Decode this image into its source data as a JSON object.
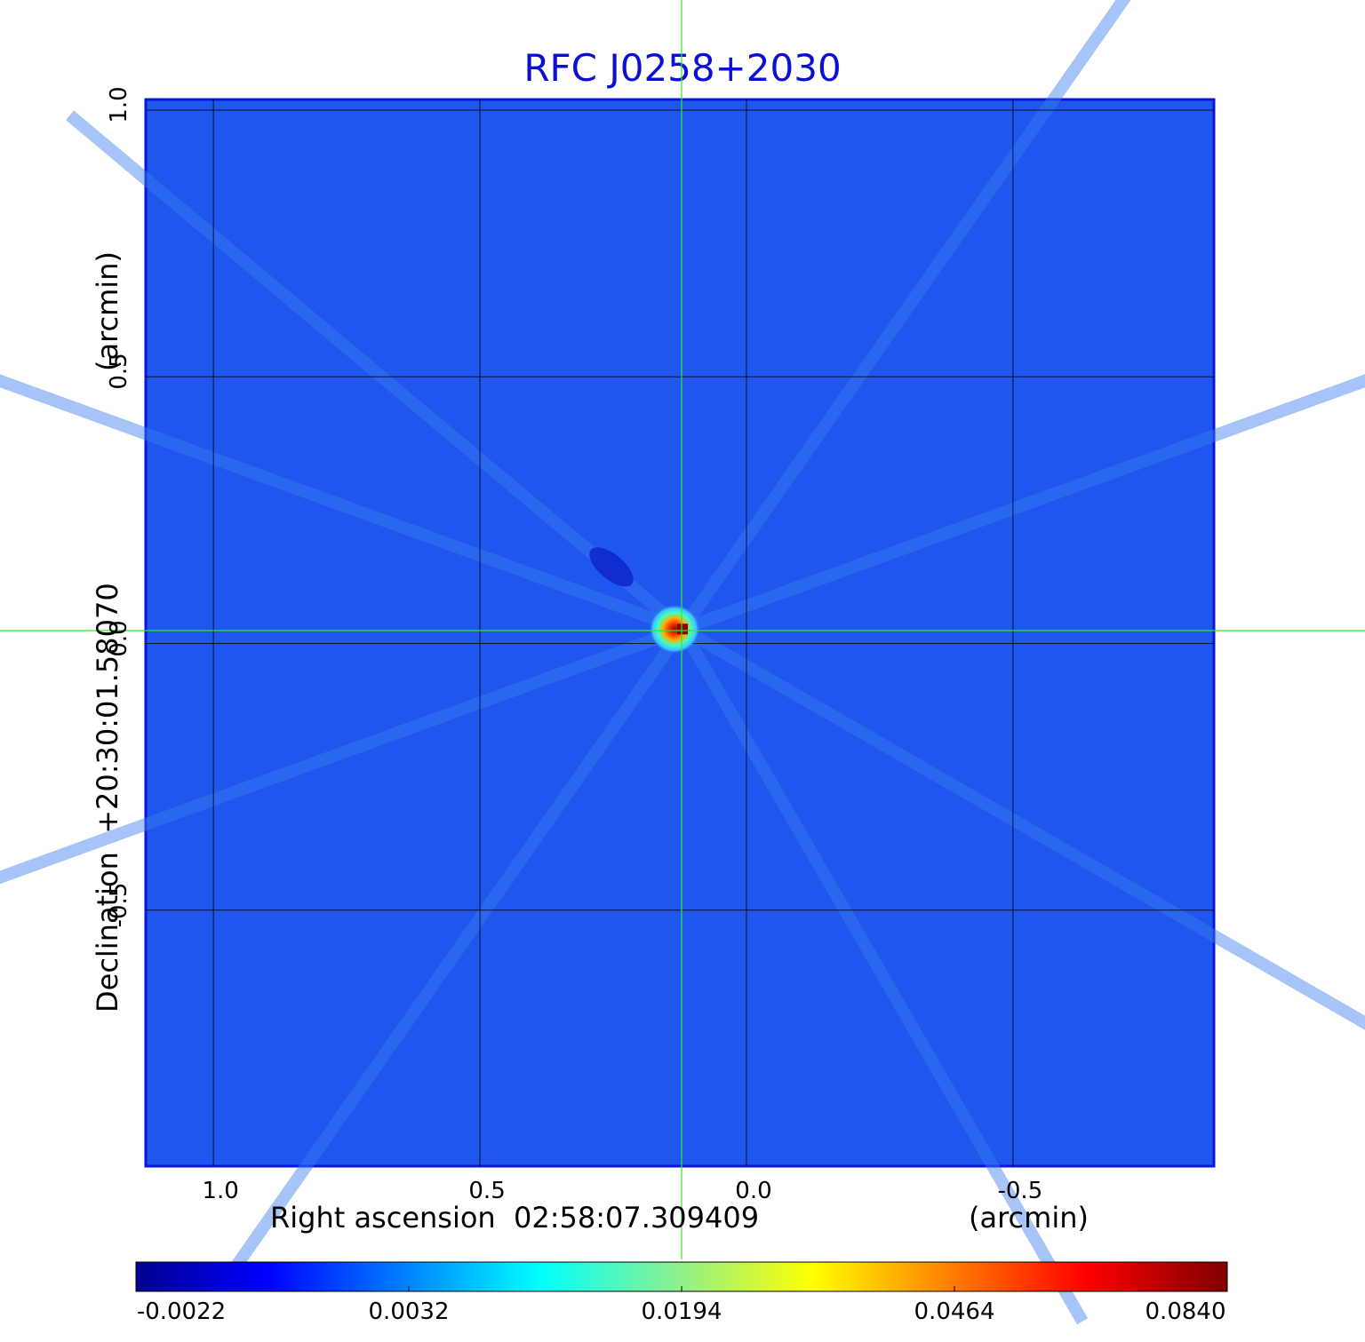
{
  "title": "RFC J0258+2030",
  "chart_data": {
    "type": "heatmap",
    "title": "RFC J0258+2030",
    "xlabel": "Right ascension  02:58:07.309409",
    "xlabel_unit": "(arcmin)",
    "ylabel": "Declination  +20:30:01.58070",
    "ylabel_unit": "(arcmin)",
    "x_ticks": [
      "1.0",
      "0.5",
      "0.0",
      "-0.5"
    ],
    "x_tick_values": [
      1.0,
      0.5,
      0.0,
      -0.5
    ],
    "y_ticks": [
      "1.0",
      "0.5",
      "0.0",
      "-0.5"
    ],
    "y_tick_values": [
      1.0,
      0.5,
      0.0,
      -0.5
    ],
    "xlim": [
      1.127,
      -0.877
    ],
    "ylim": [
      -0.98,
      1.02
    ],
    "grid": true,
    "crosshair_color": "#2ee82e",
    "colormap": "jet",
    "background_level": 0.0005,
    "source_peak": {
      "ra": 0.12,
      "dec": 0.027,
      "flux": 0.084
    },
    "colorbar": {
      "ticks": [
        "-0.0022",
        "0.0032",
        "0.0194",
        "0.0464",
        "0.0840"
      ],
      "values": [
        -0.0022,
        0.0032,
        0.0194,
        0.0464,
        0.084
      ]
    }
  }
}
